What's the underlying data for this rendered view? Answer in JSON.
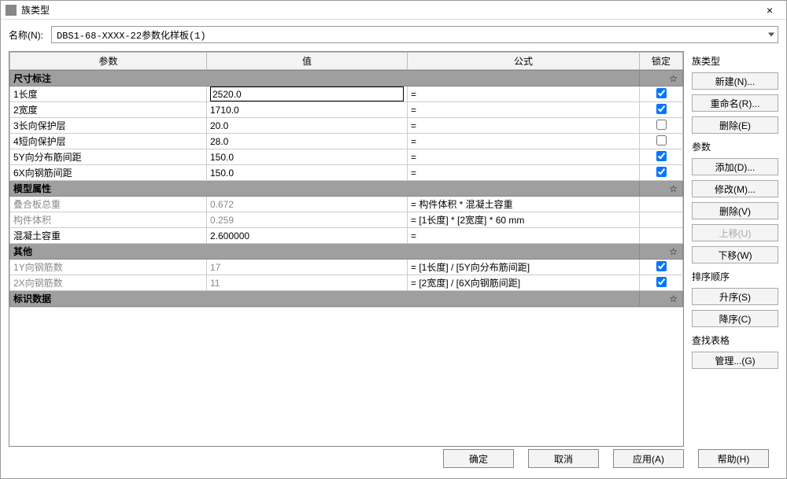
{
  "window": {
    "title": "族类型",
    "close_glyph": "×"
  },
  "name": {
    "label": "名称(N):",
    "value": "DBS1-68-XXXX-22参数化样板(1)"
  },
  "grid": {
    "headers": {
      "param": "参数",
      "value": "值",
      "formula": "公式",
      "lock": "锁定"
    },
    "col_widths": {
      "param": 250,
      "value": 255,
      "lock": 55
    },
    "sections": [
      {
        "title": "尺寸标注",
        "expand_glyph": "☆",
        "rows": [
          {
            "param": "1长度",
            "value": "2520.0",
            "formula": "=",
            "lock": true,
            "editing": true
          },
          {
            "param": "2宽度",
            "value": "1710.0",
            "formula": "=",
            "lock": true
          },
          {
            "param": "3长向保护层",
            "value": "20.0",
            "formula": "=",
            "lock": false
          },
          {
            "param": "4短向保护层",
            "value": "28.0",
            "formula": "=",
            "lock": false
          },
          {
            "param": "5Y向分布筋间距",
            "value": "150.0",
            "formula": "=",
            "lock": true
          },
          {
            "param": "6X向钢筋间距",
            "value": "150.0",
            "formula": "=",
            "lock": true
          }
        ]
      },
      {
        "title": "模型属性",
        "expand_glyph": "☆",
        "rows": [
          {
            "param": "叠合板总重",
            "value": "0.672",
            "formula": "= 构件体积 * 混凝土容重",
            "readonly": true
          },
          {
            "param": "构件体积",
            "value": "0.259",
            "formula": "= [1长度] * [2宽度] * 60 mm",
            "readonly": true
          },
          {
            "param": "混凝土容重",
            "value": "2.600000",
            "formula": "="
          }
        ]
      },
      {
        "title": "其他",
        "expand_glyph": "☆",
        "rows": [
          {
            "param": "1Y向钢筋数",
            "value": "17",
            "formula": "= [1长度] / [5Y向分布筋间距]",
            "lock": true,
            "readonly": true
          },
          {
            "param": "2X向钢筋数",
            "value": "11",
            "formula": "= [2宽度] / [6X向钢筋间距]",
            "lock": true,
            "readonly": true
          }
        ]
      },
      {
        "title": "标识数据",
        "expand_glyph": "☆",
        "rows": []
      }
    ]
  },
  "side": {
    "groups": [
      {
        "label": "族类型",
        "buttons": [
          {
            "id": "new",
            "text": "新建(N)..."
          },
          {
            "id": "rename",
            "text": "重命名(R)..."
          },
          {
            "id": "delete-type",
            "text": "删除(E)"
          }
        ]
      },
      {
        "label": "参数",
        "buttons": [
          {
            "id": "add",
            "text": "添加(D)..."
          },
          {
            "id": "modify",
            "text": "修改(M)..."
          },
          {
            "id": "delete-param",
            "text": "删除(V)"
          },
          {
            "id": "move-up",
            "text": "上移(U)",
            "disabled": true
          },
          {
            "id": "move-down",
            "text": "下移(W)"
          }
        ]
      },
      {
        "label": "排序顺序",
        "buttons": [
          {
            "id": "sort-asc",
            "text": "升序(S)"
          },
          {
            "id": "sort-desc",
            "text": "降序(C)"
          }
        ]
      },
      {
        "label": "查找表格",
        "buttons": [
          {
            "id": "manage",
            "text": "管理...(G)"
          }
        ]
      }
    ]
  },
  "footer": {
    "ok": "确定",
    "cancel": "取消",
    "apply": "应用(A)",
    "help": "帮助(H)"
  },
  "colors": {
    "section_bg": "#9f9f9f",
    "header_bg": "#f3f3f3",
    "border": "#bbbbbb",
    "readonly_text": "#8a8a8a"
  }
}
